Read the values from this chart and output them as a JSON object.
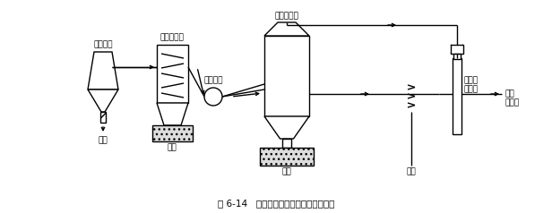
{
  "title": "图 6-14   高温煤气净化用陶瓷过滤器系统",
  "labels": {
    "gasifier": "煤气化炉",
    "cyclone": "旋风除尘器",
    "blower": "增压风机",
    "filter": "陶瓷过滤器",
    "ash": "灰渣",
    "seal1": "水封",
    "seal2": "水封",
    "tank": "罐体",
    "nitrogen": "氮气瓶\n或气包",
    "workshop": "车间\n内待用"
  },
  "bg_color": "#ffffff",
  "line_color": "#000000",
  "fig_width": 6.16,
  "fig_height": 2.38,
  "dpi": 100
}
